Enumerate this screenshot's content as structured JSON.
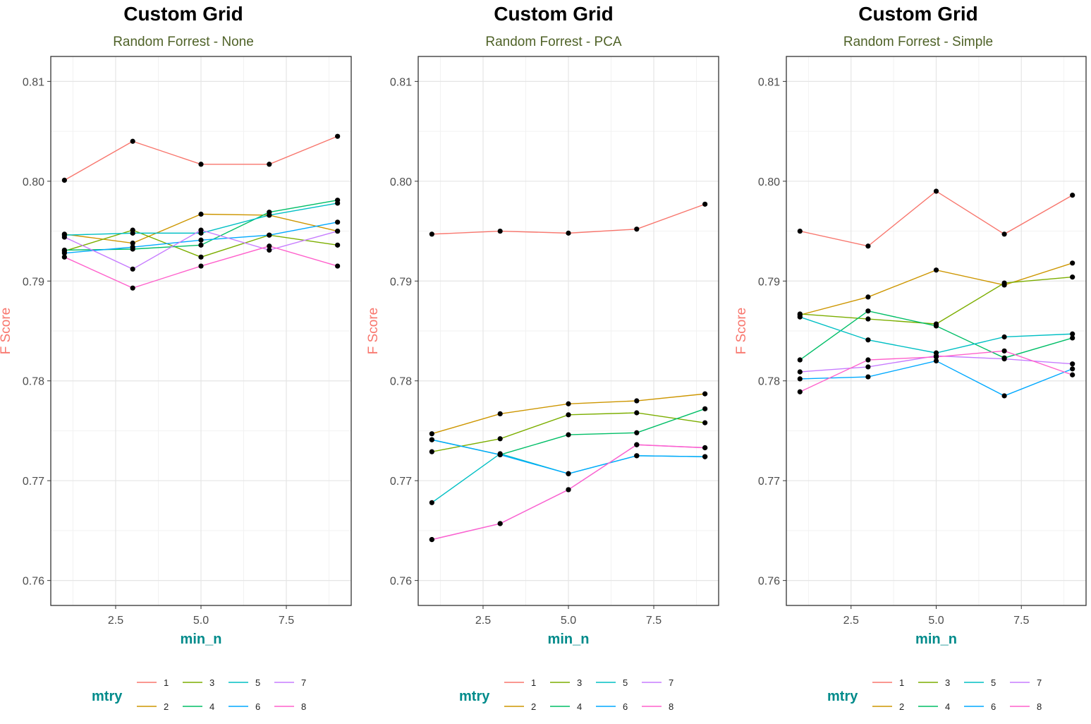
{
  "colors": {
    "1": "#F8766D",
    "2": "#CD9600",
    "3": "#7CAE00",
    "4": "#00BE67",
    "5": "#00BFC4",
    "6": "#00A9FF",
    "7": "#C77CFF",
    "8": "#FF61CC",
    "title": "#000000",
    "subtitle": "#4F6228",
    "xlabel": "#008B8B",
    "ylabel": "#F8766D",
    "legend_title": "#008B8B",
    "points": "#000000"
  },
  "legend": {
    "title": "mtry",
    "labels": [
      "1",
      "2",
      "3",
      "4",
      "5",
      "6",
      "7",
      "8"
    ]
  },
  "chart_data": [
    {
      "type": "line",
      "title": "Custom Grid",
      "subtitle": "Random Forrest - None",
      "xlabel": "min_n",
      "ylabel": "F Score",
      "x": [
        1,
        3,
        5,
        7,
        9
      ],
      "xticks": [
        2.5,
        5.0,
        7.5
      ],
      "xtick_labels": [
        "2.5",
        "5.0",
        "7.5"
      ],
      "xlim": [
        0.6,
        9.4
      ],
      "yticks": [
        0.76,
        0.77,
        0.78,
        0.79,
        0.8,
        0.81
      ],
      "ytick_labels": [
        "0.76",
        "0.77",
        "0.78",
        "0.79",
        "0.80",
        "0.81"
      ],
      "ylim": [
        0.7575,
        0.8125
      ],
      "grid": true,
      "legend_position": "bottom",
      "series": [
        {
          "name": "1",
          "values": [
            0.8001,
            0.804,
            0.8017,
            0.8017,
            0.8045
          ]
        },
        {
          "name": "2",
          "values": [
            0.7947,
            0.7938,
            0.7967,
            0.7966,
            0.795
          ]
        },
        {
          "name": "3",
          "values": [
            0.793,
            0.7951,
            0.7924,
            0.7946,
            0.7936
          ]
        },
        {
          "name": "4",
          "values": [
            0.7931,
            0.7932,
            0.7936,
            0.7969,
            0.7981
          ]
        },
        {
          "name": "5",
          "values": [
            0.7946,
            0.7948,
            0.7948,
            0.7966,
            0.7978
          ]
        },
        {
          "name": "6",
          "values": [
            0.7928,
            0.7934,
            0.7941,
            0.7946,
            0.7959
          ]
        },
        {
          "name": "7",
          "values": [
            0.7944,
            0.7912,
            0.7951,
            0.7931,
            0.795
          ]
        },
        {
          "name": "8",
          "values": [
            0.7924,
            0.7893,
            0.7915,
            0.7935,
            0.7915
          ]
        }
      ]
    },
    {
      "type": "line",
      "title": "Custom Grid",
      "subtitle": "Random Forrest - PCA",
      "xlabel": "min_n",
      "ylabel": "F Score",
      "x": [
        1,
        3,
        5,
        7,
        9
      ],
      "xticks": [
        2.5,
        5.0,
        7.5
      ],
      "xtick_labels": [
        "2.5",
        "5.0",
        "7.5"
      ],
      "xlim": [
        0.6,
        9.4
      ],
      "yticks": [
        0.76,
        0.77,
        0.78,
        0.79,
        0.8,
        0.81
      ],
      "ytick_labels": [
        "0.76",
        "0.77",
        "0.78",
        "0.79",
        "0.80",
        "0.81"
      ],
      "ylim": [
        0.7575,
        0.8125
      ],
      "grid": true,
      "legend_position": "bottom",
      "series": [
        {
          "name": "1",
          "values": [
            0.7947,
            0.795,
            0.7948,
            0.7952,
            0.7977
          ]
        },
        {
          "name": "2",
          "values": [
            0.7747,
            0.7767,
            0.7777,
            0.778,
            0.7787
          ]
        },
        {
          "name": "3",
          "values": [
            0.7729,
            0.7742,
            0.7766,
            0.7768,
            0.7758
          ]
        },
        {
          "name": "4",
          "values": [
            0.7741,
            0.7726,
            0.7746,
            0.7748,
            0.7772
          ]
        },
        {
          "name": "5",
          "values": [
            0.7678,
            0.7727,
            0.7707,
            0.7725,
            0.7724
          ]
        },
        {
          "name": "6",
          "values": [
            0.7741,
            0.7726,
            0.7707,
            0.7725,
            0.7724
          ]
        },
        {
          "name": "7",
          "values": [
            0.7641,
            0.7657,
            0.7691,
            0.7736,
            0.7733
          ]
        },
        {
          "name": "8",
          "values": [
            0.7641,
            0.7657,
            0.7691,
            0.7736,
            0.7733
          ]
        }
      ]
    },
    {
      "type": "line",
      "title": "Custom Grid",
      "subtitle": "Random Forrest - Simple",
      "xlabel": "min_n",
      "ylabel": "F Score",
      "x": [
        1,
        3,
        5,
        7,
        9
      ],
      "xticks": [
        2.5,
        5.0,
        7.5
      ],
      "xtick_labels": [
        "2.5",
        "5.0",
        "7.5"
      ],
      "xlim": [
        0.6,
        9.4
      ],
      "yticks": [
        0.76,
        0.77,
        0.78,
        0.79,
        0.8,
        0.81
      ],
      "ytick_labels": [
        "0.76",
        "0.77",
        "0.78",
        "0.79",
        "0.80",
        "0.81"
      ],
      "ylim": [
        0.7575,
        0.8125
      ],
      "grid": true,
      "legend_position": "bottom",
      "series": [
        {
          "name": "1",
          "values": [
            0.795,
            0.7935,
            0.799,
            0.7947,
            0.7986
          ]
        },
        {
          "name": "2",
          "values": [
            0.7866,
            0.7884,
            0.7911,
            0.7896,
            0.7918
          ]
        },
        {
          "name": "3",
          "values": [
            0.7867,
            0.7862,
            0.7857,
            0.7898,
            0.7904
          ]
        },
        {
          "name": "4",
          "values": [
            0.7821,
            0.787,
            0.7855,
            0.7823,
            0.7843
          ]
        },
        {
          "name": "5",
          "values": [
            0.7864,
            0.7841,
            0.7828,
            0.7844,
            0.7847
          ]
        },
        {
          "name": "6",
          "values": [
            0.7802,
            0.7804,
            0.782,
            0.7785,
            0.7812
          ]
        },
        {
          "name": "7",
          "values": [
            0.7809,
            0.7814,
            0.7825,
            0.7822,
            0.7817
          ]
        },
        {
          "name": "8",
          "values": [
            0.7789,
            0.7821,
            0.7824,
            0.783,
            0.7806
          ]
        }
      ]
    }
  ]
}
